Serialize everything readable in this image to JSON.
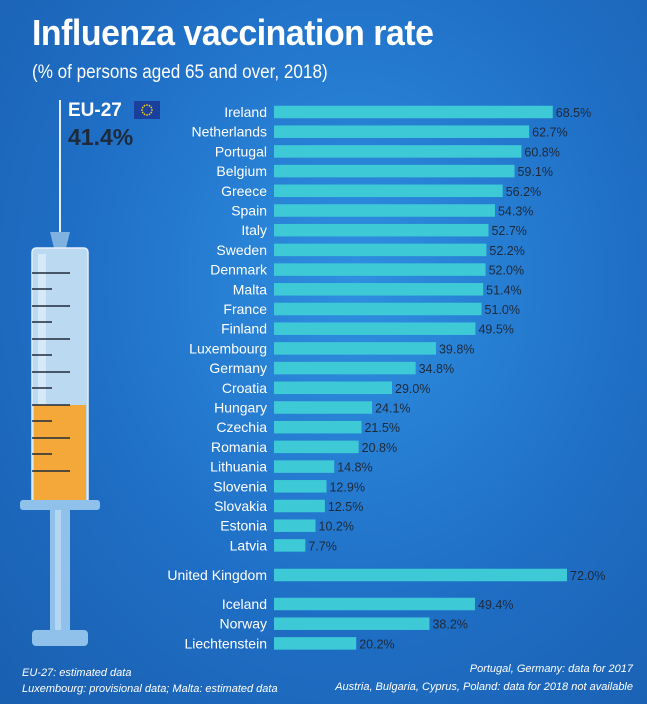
{
  "title": "Influenza vaccination rate",
  "subtitle": "(% of persons aged 65 and over, 2018)",
  "eu": {
    "label": "EU-27",
    "value": "41.4%"
  },
  "colors": {
    "background": "#1f6fc6",
    "bar": "#3ec9d6",
    "value_text": "#1e2a3a",
    "syringe_liquid": "#f4a83a"
  },
  "chart_data": {
    "type": "bar",
    "orientation": "horizontal",
    "title": "Influenza vaccination rate",
    "subtitle": "(% of persons aged 65 and over, 2018)",
    "xlim": [
      0,
      72
    ],
    "grid": false,
    "groups": [
      {
        "categories": [
          "Ireland",
          "Netherlands",
          "Portugal",
          "Belgium",
          "Greece",
          "Spain",
          "Italy",
          "Sweden",
          "Denmark",
          "Malta",
          "France",
          "Finland",
          "Luxembourg",
          "Germany",
          "Croatia",
          "Hungary",
          "Czechia",
          "Romania",
          "Lithuania",
          "Slovenia",
          "Slovakia",
          "Estonia",
          "Latvia"
        ],
        "values": [
          68.5,
          62.7,
          60.8,
          59.1,
          56.2,
          54.3,
          52.7,
          52.2,
          52.0,
          51.4,
          51.0,
          49.5,
          39.8,
          34.8,
          29.0,
          24.1,
          21.5,
          20.8,
          14.8,
          12.9,
          12.5,
          10.2,
          7.7
        ],
        "labels": [
          "68.5%",
          "62.7%",
          "60.8%",
          "59.1%",
          "56.2%",
          "54.3%",
          "52.7%",
          "52.2%",
          "52.0%",
          "51.4%",
          "51.0%",
          "49.5%",
          "39.8%",
          "34.8%",
          "29.0%",
          "24.1%",
          "21.5%",
          "20.8%",
          "14.8%",
          "12.9%",
          "12.5%",
          "10.2%",
          "7.7%"
        ]
      },
      {
        "categories": [
          "United Kingdom"
        ],
        "values": [
          72.0
        ],
        "labels": [
          "72.0%"
        ]
      },
      {
        "categories": [
          "Iceland",
          "Norway",
          "Liechtenstein"
        ],
        "values": [
          49.4,
          38.2,
          20.2
        ],
        "labels": [
          "49.4%",
          "38.2%",
          "20.2%"
        ]
      }
    ]
  },
  "footnotes": {
    "left": [
      "EU-27: estimated data",
      "Luxembourg: provisional data; Malta: estimated data"
    ],
    "right": [
      "Portugal, Germany: data for 2017",
      "Austria, Bulgaria, Cyprus, Poland: data for 2018 not available"
    ]
  }
}
